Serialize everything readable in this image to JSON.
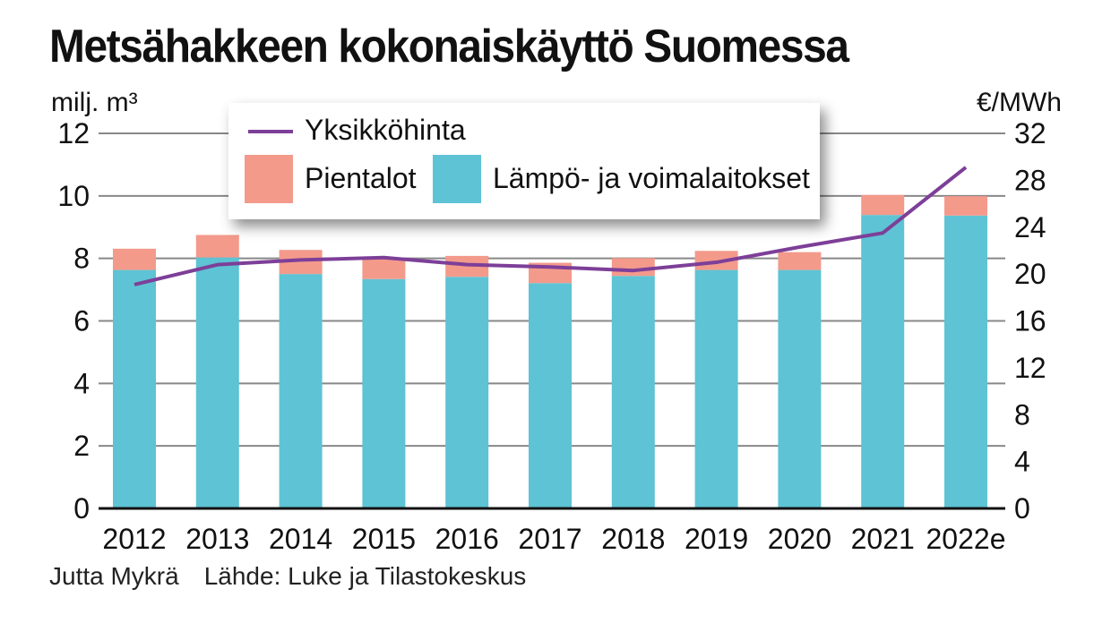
{
  "title": "Metsähakkeen kokonaiskäyttö Suomessa",
  "footer": {
    "author": "Jutta Mykrä",
    "source": "Lähde: Luke ja Tilastokeskus"
  },
  "chart_data": {
    "type": "bar",
    "stacked": true,
    "title": "Metsähakkeen kokonaiskäyttö Suomessa",
    "ylabel": "milj. m³",
    "y2label": "€/MWh",
    "ylim": [
      0,
      12
    ],
    "y2lim": [
      0,
      32
    ],
    "yticks": [
      "0",
      "2",
      "4",
      "6",
      "8",
      "10",
      "12"
    ],
    "y2ticks": [
      "0",
      "4",
      "8",
      "12",
      "16",
      "20",
      "24",
      "28",
      "32"
    ],
    "categories": [
      "2012",
      "2013",
      "2014",
      "2015",
      "2016",
      "2017",
      "2018",
      "2019",
      "2020",
      "2021",
      "2022e"
    ],
    "series": [
      {
        "name": "Lämpö- ja voimalaitokset",
        "type": "bar",
        "axis": "left",
        "color": "#5ec3d4",
        "values": [
          7.63,
          8.03,
          7.5,
          7.34,
          7.41,
          7.21,
          7.44,
          7.63,
          7.63,
          9.39,
          9.37
        ]
      },
      {
        "name": "Pientalot",
        "type": "bar",
        "axis": "left",
        "color": "#f39a8b",
        "values": [
          0.68,
          0.72,
          0.77,
          0.65,
          0.67,
          0.65,
          0.57,
          0.61,
          0.57,
          0.64,
          0.62
        ]
      },
      {
        "name": "Yksikköhinta",
        "type": "line",
        "axis": "right",
        "color": "#7d3f98",
        "values": [
          19.1,
          20.8,
          21.2,
          21.4,
          20.8,
          20.6,
          20.3,
          21.0,
          22.3,
          23.5,
          29.1
        ]
      }
    ],
    "grid": true,
    "legend": "top-center"
  }
}
